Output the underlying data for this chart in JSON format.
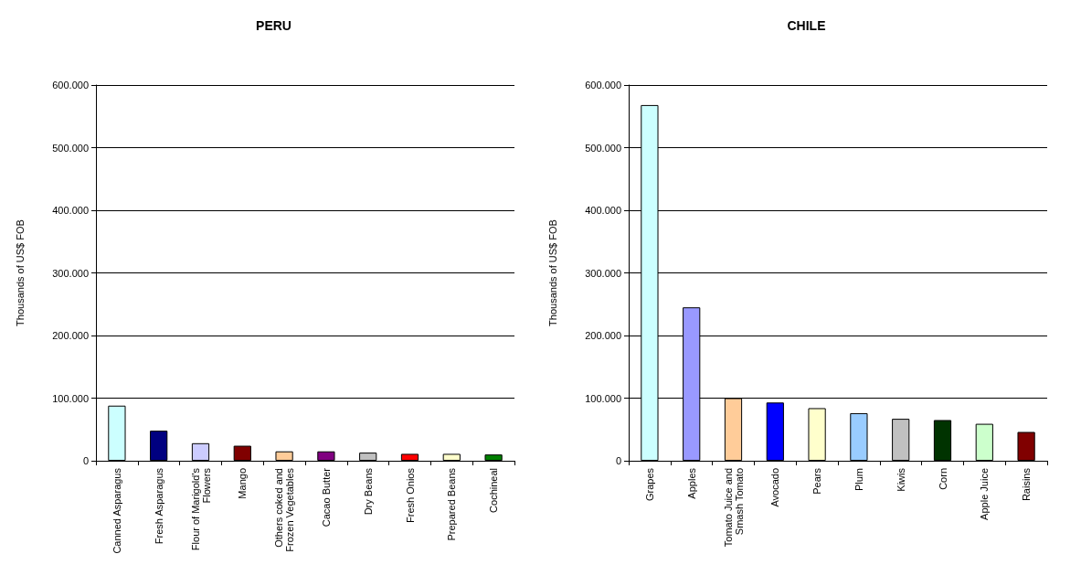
{
  "chart_data": [
    {
      "type": "bar",
      "title": "PERU",
      "ylabel": "Thousands of US$ FOB",
      "categories": [
        "Canned Asparagus",
        "Fresh Asparagus",
        "Flour of Marigold's\nFlowers",
        "Mango",
        "Others coked and\nFrozen Vegetables",
        "Cacao Butter",
        "Dry Beans",
        "Fresh Onios",
        "Prepared Beans",
        "Cochineal"
      ],
      "values": [
        88000,
        48000,
        28000,
        24000,
        15000,
        15000,
        13000,
        11000,
        11000,
        10000
      ],
      "colors": [
        "#ccffff",
        "#000080",
        "#ccccff",
        "#800000",
        "#ffcc99",
        "#800080",
        "#c0c0c0",
        "#ff0000",
        "#ffffcc",
        "#008000"
      ],
      "ylim": [
        0,
        600000
      ],
      "yticks": [
        0,
        {
          "value": 100000,
          "label": "100.000"
        },
        {
          "value": 200000,
          "label": "200.000"
        },
        {
          "value": 300000,
          "label": "300.000"
        },
        {
          "value": 400000,
          "label": "400.000"
        },
        {
          "value": 500000,
          "label": "500.000"
        },
        {
          "value": 600000,
          "label": "600.000"
        }
      ],
      "grid": "y"
    },
    {
      "type": "bar",
      "title": "CHILE",
      "ylabel": "Thousands of US$ FOB",
      "categories": [
        "Grapes",
        "Apples",
        "Tomato Juice and\nSmash Tomato",
        "Avocado",
        "Pears",
        "Plum",
        "Kiwis",
        "Corn",
        "Apple Juice",
        "Raisins"
      ],
      "values": [
        568000,
        245000,
        100000,
        93000,
        84000,
        76000,
        67000,
        65000,
        59000,
        46000
      ],
      "colors": [
        "#ccffff",
        "#9999ff",
        "#ffcc99",
        "#0000ff",
        "#ffffcc",
        "#99ccff",
        "#c0c0c0",
        "#003300",
        "#ccffcc",
        "#800000"
      ],
      "ylim": [
        0,
        600000
      ],
      "yticks": [
        0,
        {
          "value": 100000,
          "label": "100.000"
        },
        {
          "value": 200000,
          "label": "200.000"
        },
        {
          "value": 300000,
          "label": "300.000"
        },
        {
          "value": 400000,
          "label": "400.000"
        },
        {
          "value": 500000,
          "label": "500.000"
        },
        {
          "value": 600000,
          "label": "600.000"
        }
      ],
      "grid": "y"
    }
  ]
}
